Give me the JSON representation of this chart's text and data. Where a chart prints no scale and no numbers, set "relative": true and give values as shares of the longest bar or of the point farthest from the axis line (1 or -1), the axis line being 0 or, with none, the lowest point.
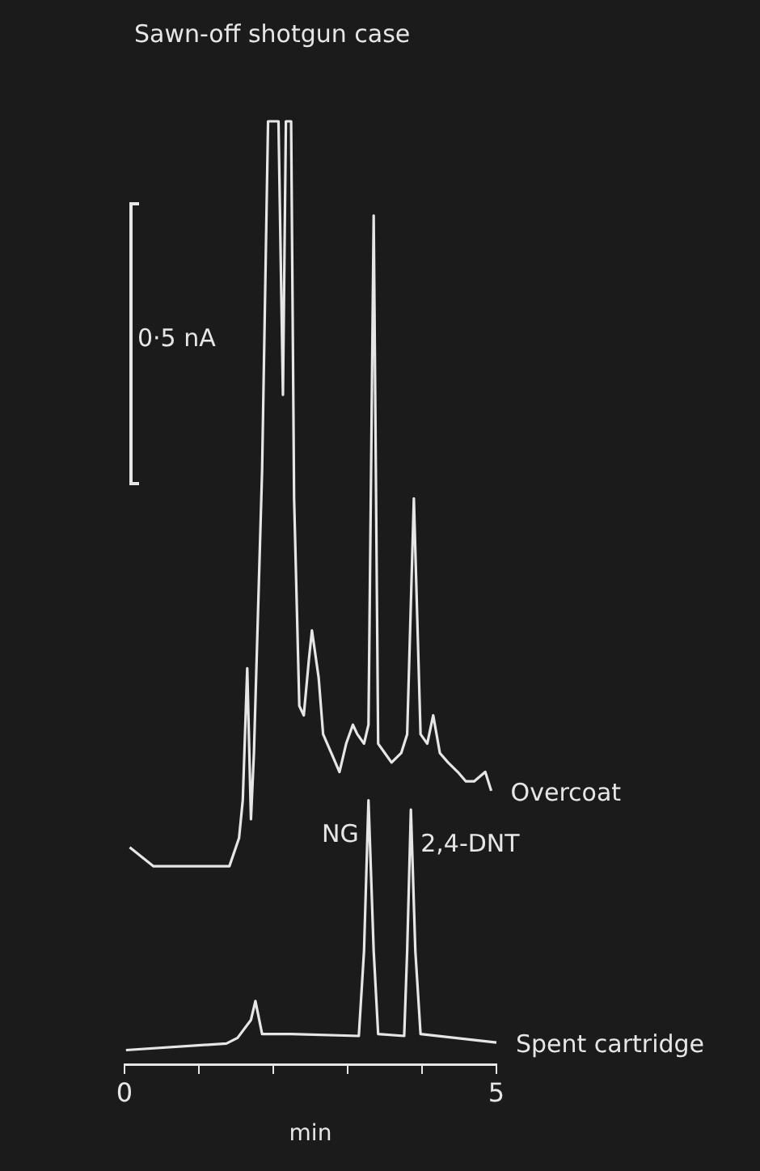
{
  "chart_data": {
    "type": "line",
    "title": "Sawn-off shotgun case",
    "xlabel": "min",
    "relative": true,
    "xlim": [
      0,
      5
    ],
    "xticks": [
      0,
      {
        "value": 1,
        "label": null
      },
      {
        "value": 2,
        "label": null
      },
      {
        "value": 3,
        "label": null
      },
      {
        "value": 4,
        "label": null
      },
      5
    ],
    "grid": false,
    "legend": false,
    "marker": "none",
    "line_style": "solid",
    "annotations": [
      "0·5 nA",
      {
        "text": "NG",
        "x": 3.28,
        "y": 0.28
      },
      {
        "text": "2,4-DNT",
        "x": 3.85,
        "y": 0.27
      }
    ],
    "series": [
      {
        "name": "Overcoat",
        "color": "#e6e6e6",
        "x": [
          0.07,
          0.39,
          0.72,
          1.41,
          1.54,
          1.59,
          1.65,
          1.7,
          1.74,
          1.85,
          1.93,
          2.07,
          2.13,
          2.17,
          2.24,
          2.28,
          2.35,
          2.41,
          2.48,
          2.52,
          2.61,
          2.67,
          2.78,
          2.89,
          2.98,
          3.07,
          3.13,
          3.22,
          3.28,
          3.35,
          3.41,
          3.5,
          3.59,
          3.72,
          3.8,
          3.89,
          3.98,
          4.07,
          4.15,
          4.24,
          4.35,
          4.48,
          4.59,
          4.7,
          4.85,
          4.93
        ],
        "values": [
          0.23,
          0.21,
          0.21,
          0.21,
          0.24,
          0.28,
          0.42,
          0.26,
          0.33,
          0.63,
          1,
          1,
          0.71,
          1,
          1,
          0.6,
          0.38,
          0.37,
          0.43,
          0.46,
          0.41,
          0.35,
          0.33,
          0.31,
          0.34,
          0.36,
          0.35,
          0.34,
          0.36,
          0.9,
          0.34,
          0.33,
          0.32,
          0.33,
          0.35,
          0.6,
          0.35,
          0.34,
          0.37,
          0.33,
          0.32,
          0.31,
          0.3,
          0.3,
          0.31,
          0.29
        ]
      },
      {
        "name": "Spent cartridge",
        "color": "#e6e6e6",
        "x": [
          0.02,
          1.37,
          1.52,
          1.7,
          1.76,
          1.85,
          2.24,
          3.15,
          3.22,
          3.28,
          3.35,
          3.41,
          3.76,
          3.8,
          3.85,
          3.91,
          3.98,
          5
        ],
        "values": [
          0.015,
          0.022,
          0.028,
          0.047,
          0.067,
          0.032,
          0.032,
          0.03,
          0.12,
          0.28,
          0.12,
          0.032,
          0.03,
          0.12,
          0.27,
          0.12,
          0.032,
          0.023
        ]
      }
    ]
  }
}
